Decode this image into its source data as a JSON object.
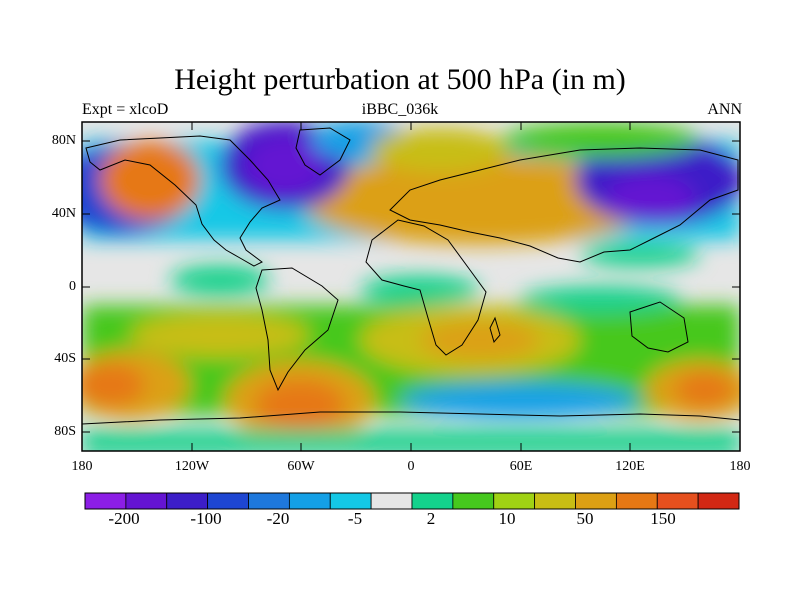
{
  "title": "Height perturbation at 500 hPa (in m)",
  "left_string": "Expt = xlcoD",
  "center_string": "iBBC_036k",
  "right_string": "ANN",
  "y_ticks": [
    "80N",
    "40N",
    "0",
    "40S",
    "80S"
  ],
  "x_ticks": [
    "180",
    "120W",
    "60W",
    "0",
    "60E",
    "120E",
    "180"
  ],
  "colorbar": {
    "colors": [
      "#8c1ee6",
      "#6414d2",
      "#3c1ec8",
      "#1e46d2",
      "#1e78dc",
      "#14a0e6",
      "#14c8e6",
      "#e6e6e6",
      "#14d28c",
      "#46c81e",
      "#a0d214",
      "#c8be14",
      "#dca014",
      "#e67814",
      "#e6501e",
      "#d22814"
    ],
    "labels": [
      "-200",
      "-100",
      "-20",
      "-5",
      "2",
      "10",
      "50",
      "150"
    ]
  }
}
